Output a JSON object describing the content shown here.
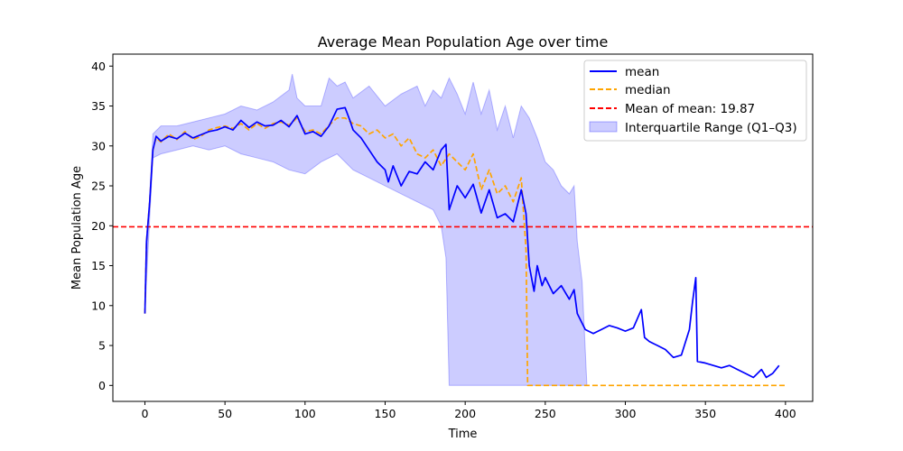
{
  "chart_data": {
    "type": "line",
    "title": "Average Mean Population Age over time",
    "xlabel": "Time",
    "ylabel": "Mean Population Age",
    "xlim": [
      -20,
      417
    ],
    "ylim": [
      -2,
      41.5
    ],
    "xticks": [
      0,
      50,
      100,
      150,
      200,
      250,
      300,
      350,
      400
    ],
    "yticks": [
      0,
      5,
      10,
      15,
      20,
      25,
      30,
      35,
      40
    ],
    "grid": false,
    "legend_position": "top-right",
    "reference_line": {
      "name": "Mean of mean: 19.87",
      "value": 19.87,
      "color": "#ff0000",
      "style": "dashed"
    },
    "series": [
      {
        "name": "mean",
        "color": "#0000ff",
        "style": "solid",
        "points": [
          [
            0,
            9
          ],
          [
            1,
            18
          ],
          [
            3,
            23
          ],
          [
            5,
            29.5
          ],
          [
            7,
            31.2
          ],
          [
            10,
            30.6
          ],
          [
            15,
            31.2
          ],
          [
            20,
            30.9
          ],
          [
            25,
            31.6
          ],
          [
            30,
            31.0
          ],
          [
            35,
            31.4
          ],
          [
            40,
            31.8
          ],
          [
            45,
            32.0
          ],
          [
            50,
            32.4
          ],
          [
            55,
            32.0
          ],
          [
            60,
            33.2
          ],
          [
            65,
            32.3
          ],
          [
            70,
            33.0
          ],
          [
            75,
            32.5
          ],
          [
            80,
            32.6
          ],
          [
            85,
            33.2
          ],
          [
            90,
            32.4
          ],
          [
            95,
            33.8
          ],
          [
            100,
            31.5
          ],
          [
            105,
            31.8
          ],
          [
            110,
            31.2
          ],
          [
            115,
            32.5
          ],
          [
            120,
            34.6
          ],
          [
            125,
            34.8
          ],
          [
            128,
            33.2
          ],
          [
            130,
            32.0
          ],
          [
            135,
            31.0
          ],
          [
            140,
            29.5
          ],
          [
            145,
            28.0
          ],
          [
            150,
            27.0
          ],
          [
            152,
            25.5
          ],
          [
            155,
            27.5
          ],
          [
            160,
            25.0
          ],
          [
            165,
            26.8
          ],
          [
            170,
            26.5
          ],
          [
            175,
            28.0
          ],
          [
            180,
            27.0
          ],
          [
            185,
            29.5
          ],
          [
            188,
            30.2
          ],
          [
            190,
            22.0
          ],
          [
            195,
            25.0
          ],
          [
            200,
            23.5
          ],
          [
            205,
            25.2
          ],
          [
            210,
            21.6
          ],
          [
            215,
            24.5
          ],
          [
            220,
            21.0
          ],
          [
            225,
            21.5
          ],
          [
            230,
            20.5
          ],
          [
            235,
            24.5
          ],
          [
            238,
            21.5
          ],
          [
            240,
            15.0
          ],
          [
            243,
            11.8
          ],
          [
            245,
            15.0
          ],
          [
            248,
            12.5
          ],
          [
            250,
            13.5
          ],
          [
            255,
            11.5
          ],
          [
            260,
            12.5
          ],
          [
            265,
            10.8
          ],
          [
            268,
            12.0
          ],
          [
            270,
            9.0
          ],
          [
            275,
            7.0
          ],
          [
            280,
            6.5
          ],
          [
            285,
            7.0
          ],
          [
            290,
            7.5
          ],
          [
            295,
            7.2
          ],
          [
            300,
            6.8
          ],
          [
            305,
            7.2
          ],
          [
            310,
            9.5
          ],
          [
            312,
            6.0
          ],
          [
            315,
            5.5
          ],
          [
            320,
            5.0
          ],
          [
            325,
            4.5
          ],
          [
            330,
            3.5
          ],
          [
            335,
            3.8
          ],
          [
            340,
            7.0
          ],
          [
            342,
            10.5
          ],
          [
            344,
            13.5
          ],
          [
            345,
            3.0
          ],
          [
            350,
            2.8
          ],
          [
            355,
            2.5
          ],
          [
            360,
            2.2
          ],
          [
            365,
            2.5
          ],
          [
            370,
            2.0
          ],
          [
            375,
            1.5
          ],
          [
            380,
            1.0
          ],
          [
            385,
            2.0
          ],
          [
            388,
            1.0
          ],
          [
            392,
            1.5
          ],
          [
            396,
            2.5
          ]
        ]
      },
      {
        "name": "median",
        "color": "#ffa500",
        "style": "dashed",
        "points": [
          [
            0,
            9
          ],
          [
            1,
            18
          ],
          [
            3,
            23
          ],
          [
            5,
            29.5
          ],
          [
            7,
            31.0
          ],
          [
            10,
            30.5
          ],
          [
            15,
            31.5
          ],
          [
            20,
            30.8
          ],
          [
            25,
            31.8
          ],
          [
            30,
            30.8
          ],
          [
            35,
            31.2
          ],
          [
            40,
            32.0
          ],
          [
            45,
            32.3
          ],
          [
            50,
            32.5
          ],
          [
            55,
            32.2
          ],
          [
            60,
            32.8
          ],
          [
            65,
            32.0
          ],
          [
            70,
            32.8
          ],
          [
            75,
            32.2
          ],
          [
            80,
            32.8
          ],
          [
            85,
            33.0
          ],
          [
            90,
            32.6
          ],
          [
            95,
            33.5
          ],
          [
            100,
            31.8
          ],
          [
            105,
            32.0
          ],
          [
            110,
            31.5
          ],
          [
            115,
            32.6
          ],
          [
            120,
            33.5
          ],
          [
            125,
            33.5
          ],
          [
            130,
            32.8
          ],
          [
            135,
            32.5
          ],
          [
            140,
            31.5
          ],
          [
            145,
            32.0
          ],
          [
            150,
            31.0
          ],
          [
            155,
            31.5
          ],
          [
            160,
            30.0
          ],
          [
            165,
            31.0
          ],
          [
            170,
            29.0
          ],
          [
            175,
            28.5
          ],
          [
            180,
            29.5
          ],
          [
            185,
            27.5
          ],
          [
            190,
            29.0
          ],
          [
            195,
            28.0
          ],
          [
            200,
            27.0
          ],
          [
            205,
            29.0
          ],
          [
            210,
            24.5
          ],
          [
            215,
            27.0
          ],
          [
            220,
            24.0
          ],
          [
            225,
            25.0
          ],
          [
            230,
            23.0
          ],
          [
            235,
            26.0
          ],
          [
            238,
            17.0
          ],
          [
            239,
            0
          ],
          [
            400,
            0
          ]
        ]
      },
      {
        "name": "Interquartile Range (Q1–Q3)",
        "color": "#0000ff",
        "opacity": 0.2,
        "style": "band",
        "q3": [
          [
            0,
            9
          ],
          [
            2,
            20
          ],
          [
            5,
            31.5
          ],
          [
            10,
            32.5
          ],
          [
            20,
            32.5
          ],
          [
            30,
            33.0
          ],
          [
            40,
            33.5
          ],
          [
            50,
            34.0
          ],
          [
            60,
            35.0
          ],
          [
            70,
            34.5
          ],
          [
            80,
            35.5
          ],
          [
            90,
            37.0
          ],
          [
            92,
            39.0
          ],
          [
            95,
            36.0
          ],
          [
            100,
            35.0
          ],
          [
            110,
            35.0
          ],
          [
            115,
            38.5
          ],
          [
            120,
            37.5
          ],
          [
            125,
            38.0
          ],
          [
            130,
            36.0
          ],
          [
            140,
            37.5
          ],
          [
            150,
            35.0
          ],
          [
            160,
            36.5
          ],
          [
            170,
            37.5
          ],
          [
            175,
            35.0
          ],
          [
            180,
            37.0
          ],
          [
            185,
            36.0
          ],
          [
            190,
            38.5
          ],
          [
            195,
            36.5
          ],
          [
            200,
            34.0
          ],
          [
            205,
            38.0
          ],
          [
            210,
            34.0
          ],
          [
            215,
            37.0
          ],
          [
            220,
            32.0
          ],
          [
            225,
            35.0
          ],
          [
            230,
            31.0
          ],
          [
            235,
            35.0
          ],
          [
            240,
            33.5
          ],
          [
            245,
            31.0
          ],
          [
            250,
            28.0
          ],
          [
            255,
            27.0
          ],
          [
            260,
            25.0
          ],
          [
            265,
            24.0
          ],
          [
            268,
            25.0
          ],
          [
            270,
            18.0
          ],
          [
            273,
            13.0
          ],
          [
            276,
            0
          ]
        ],
        "q1": [
          [
            0,
            9
          ],
          [
            2,
            17
          ],
          [
            5,
            28.5
          ],
          [
            10,
            29.0
          ],
          [
            20,
            29.5
          ],
          [
            30,
            30.0
          ],
          [
            40,
            29.5
          ],
          [
            50,
            30.0
          ],
          [
            60,
            29.0
          ],
          [
            70,
            28.5
          ],
          [
            80,
            28.0
          ],
          [
            90,
            27.0
          ],
          [
            100,
            26.5
          ],
          [
            110,
            28.0
          ],
          [
            120,
            29.0
          ],
          [
            130,
            27.0
          ],
          [
            140,
            26.0
          ],
          [
            150,
            25.0
          ],
          [
            160,
            24.0
          ],
          [
            170,
            23.0
          ],
          [
            180,
            22.0
          ],
          [
            185,
            20.0
          ],
          [
            188,
            16.0
          ],
          [
            190,
            0
          ],
          [
            276,
            0
          ]
        ]
      }
    ]
  }
}
